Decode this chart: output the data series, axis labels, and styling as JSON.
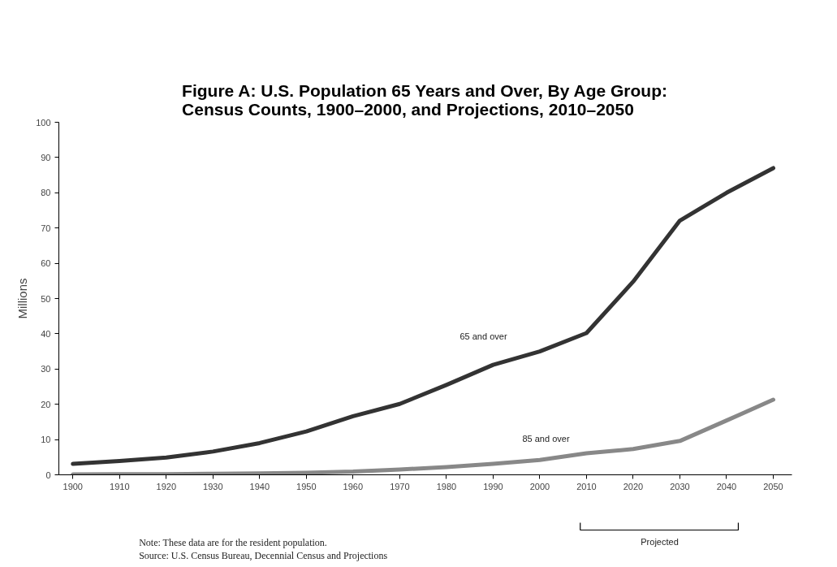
{
  "chart_data": {
    "type": "line",
    "title": "Figure A: U.S. Population 65 Years and Over, By Age Group:\nCensus Counts, 1900–2000, and Projections, 2010–2050",
    "ylabel": "Millions",
    "x": [
      1900,
      1910,
      1920,
      1930,
      1940,
      1950,
      1960,
      1970,
      1980,
      1990,
      2000,
      2010,
      2020,
      2030,
      2040,
      2050
    ],
    "series": [
      {
        "color": "#333333",
        "values": [
          3.1,
          3.9,
          4.9,
          6.6,
          9.0,
          12.3,
          16.6,
          20.1,
          25.5,
          31.2,
          35.0,
          40.2,
          54.8,
          72.1,
          80.0,
          87.0
        ]
      },
      {
        "color": "#888888",
        "values": [
          0.1,
          0.2,
          0.2,
          0.3,
          0.4,
          0.6,
          0.9,
          1.5,
          2.2,
          3.1,
          4.2,
          6.1,
          7.3,
          9.6,
          15.4,
          21.3
        ]
      }
    ],
    "xlim": [
      1897,
      2054
    ],
    "xticks": [
      1900,
      1910,
      1920,
      1930,
      1940,
      1950,
      1960,
      1970,
      1980,
      1990,
      2000,
      2010,
      2020,
      2030,
      2040,
      2050
    ],
    "ylim": [
      0,
      100
    ],
    "yticks": [
      0,
      10,
      20,
      30,
      40,
      50,
      60,
      70,
      80,
      90,
      100
    ],
    "grid": false,
    "legend": false,
    "marker": "none",
    "line_style": "solid",
    "annotations": [
      "65 and over",
      "85 and over",
      "Projected",
      "Note: These data are for the resident population.",
      "Source: U.S. Census Bureau, Decennial Census and Projections"
    ]
  }
}
